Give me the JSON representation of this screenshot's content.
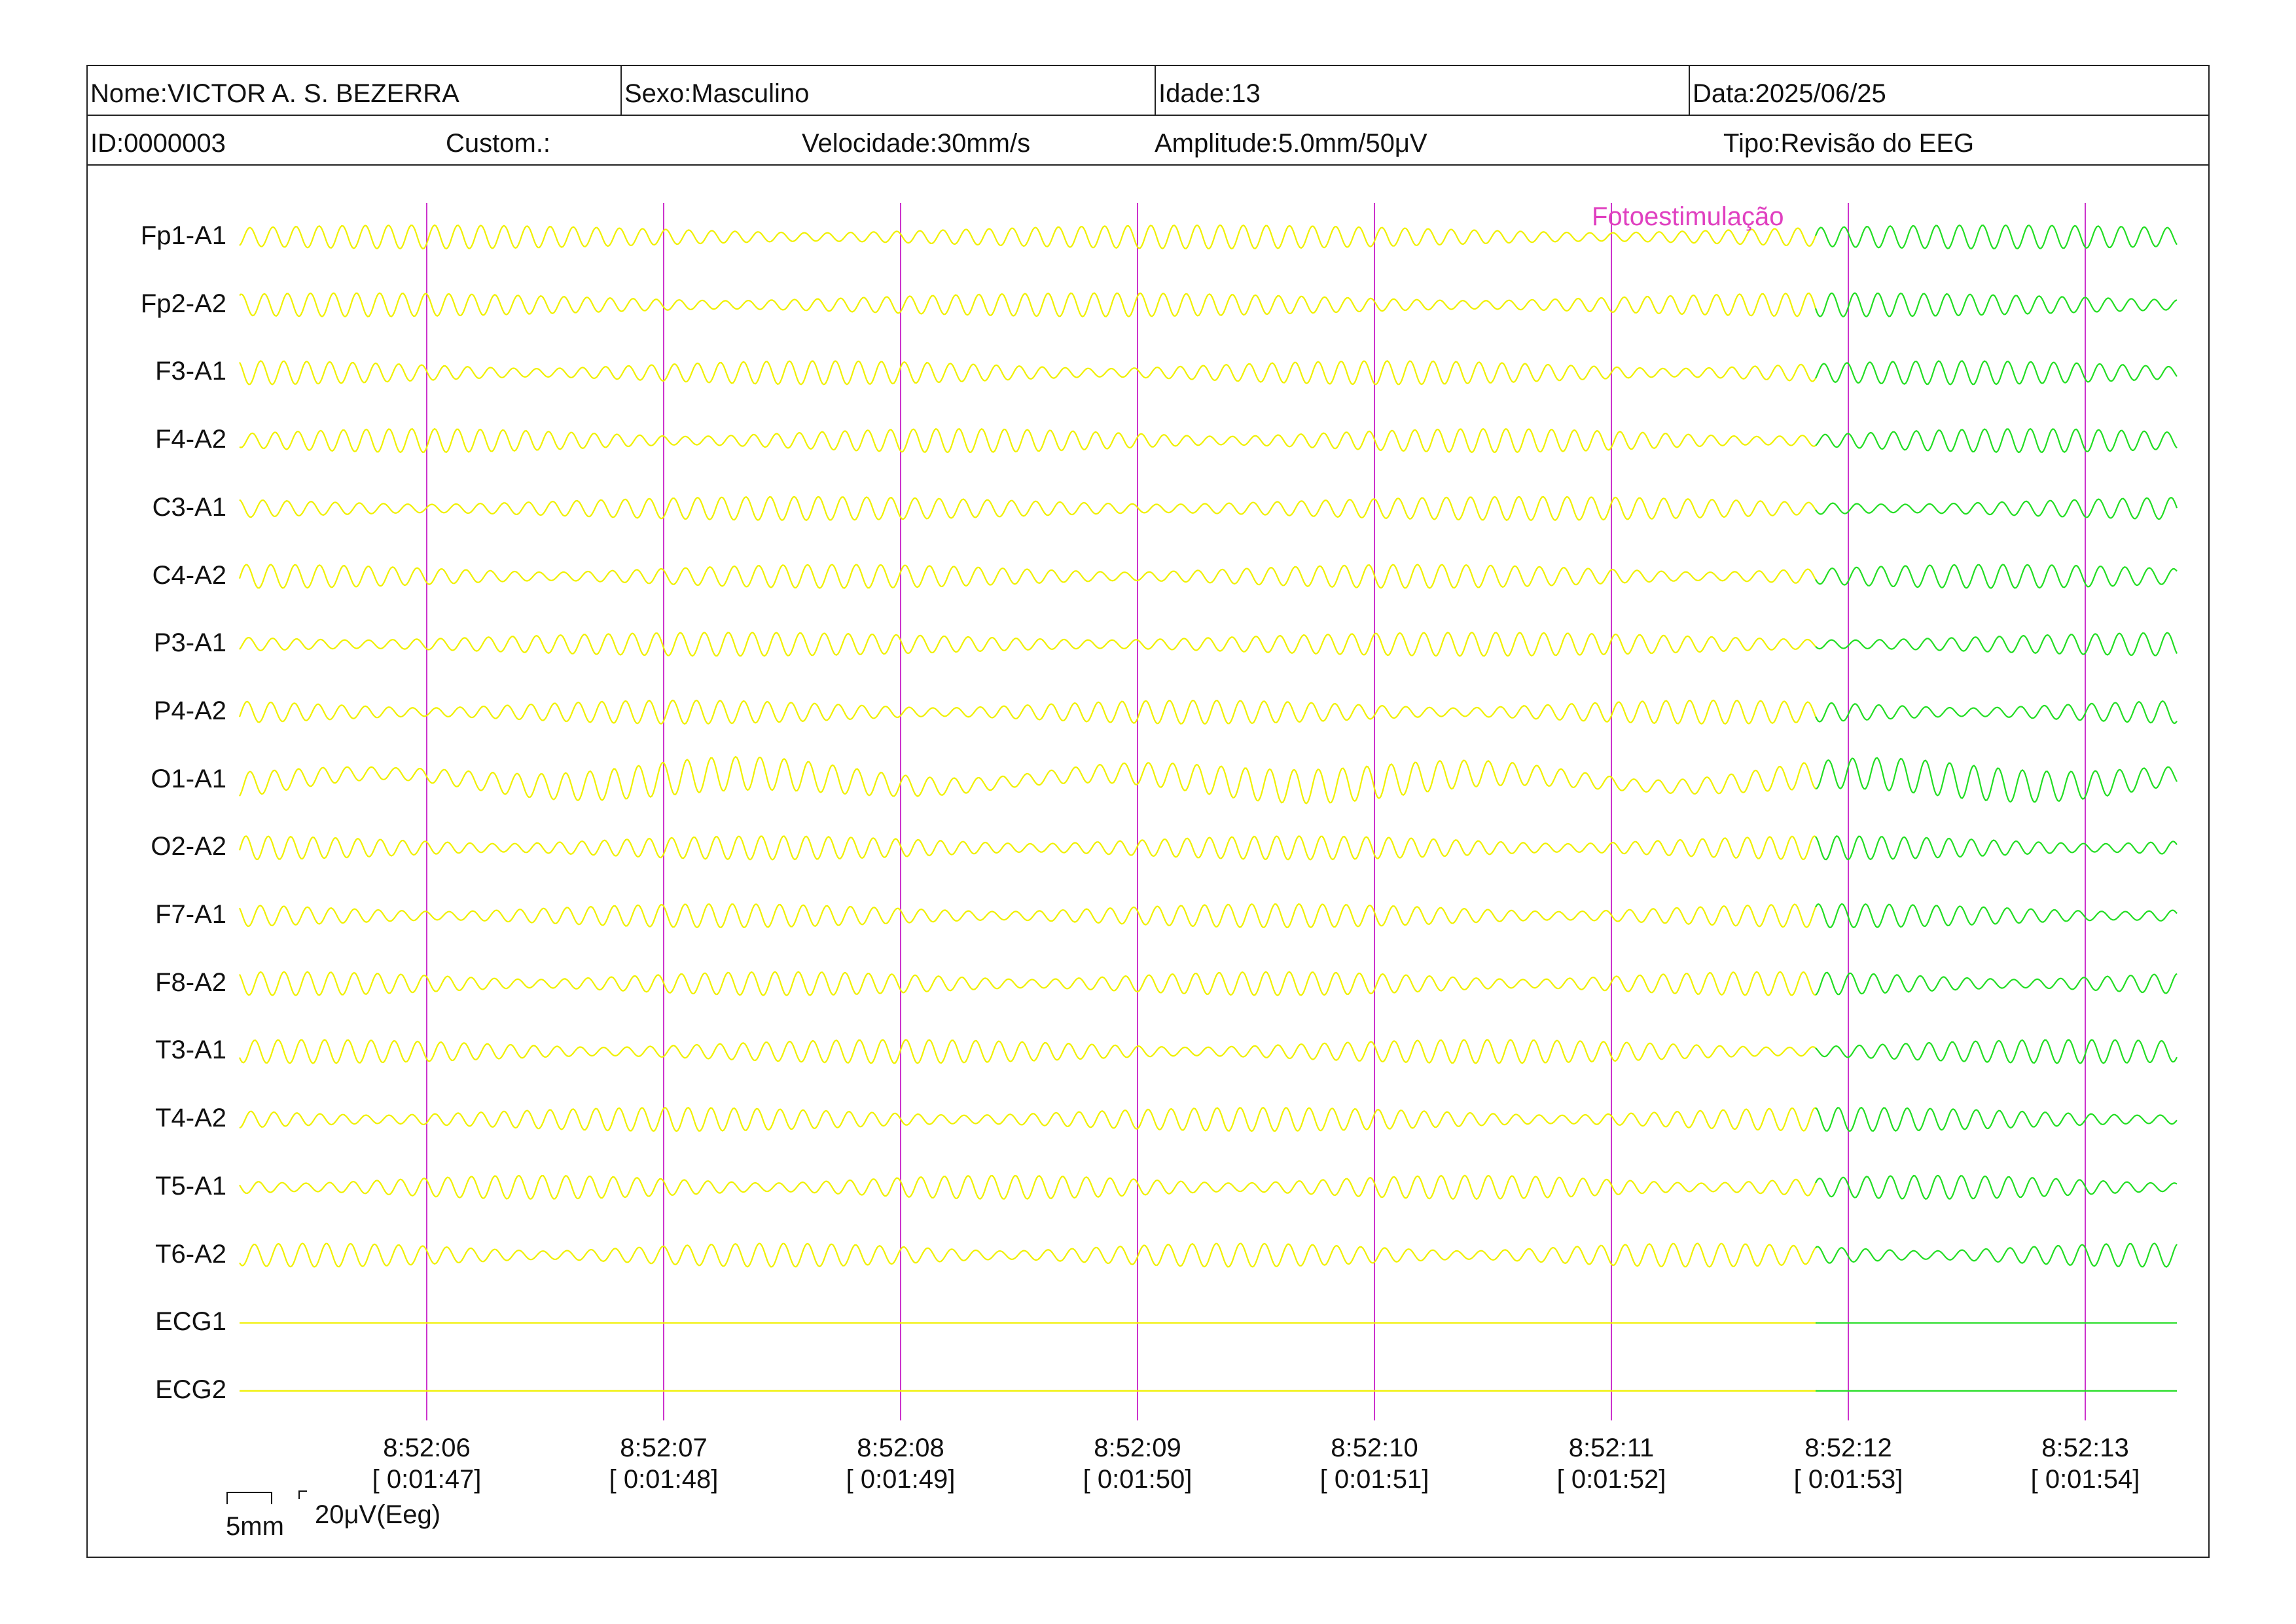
{
  "header": {
    "name": "Nome:VICTOR A. S. BEZERRA",
    "sex": "Sexo:Masculino",
    "age": "Idade:13",
    "date": "Data:2025/06/25",
    "id": "ID:0000003",
    "custom": "Custom.:",
    "speed": "Velocidade:30mm/s",
    "amplitude": "Amplitude:5.0mm/50μV",
    "type": "Tipo:Revisão do EEG"
  },
  "annotation": {
    "label": "Fotoestimulação",
    "color": "#e040c0"
  },
  "scale": {
    "mm": "5mm",
    "uv": "20μV(Eeg)"
  },
  "colors": {
    "trace": "#f0f000",
    "trace_photostim": "#22dd22",
    "marker": "#cc33cc"
  },
  "chart_data": {
    "type": "line",
    "title": "",
    "channels": [
      "Fp1-A1",
      "Fp2-A2",
      "F3-A1",
      "F4-A2",
      "C3-A1",
      "C4-A2",
      "P3-A1",
      "P4-A2",
      "O1-A1",
      "O2-A2",
      "F7-A1",
      "F8-A2",
      "T3-A1",
      "T4-A2",
      "T5-A1",
      "T6-A2",
      "ECG1",
      "ECG2"
    ],
    "time_ticks": [
      {
        "clock": "8:52:06",
        "elapsed": "[ 0:01:47]"
      },
      {
        "clock": "8:52:07",
        "elapsed": "[ 0:01:48]"
      },
      {
        "clock": "8:52:08",
        "elapsed": "[ 0:01:49]"
      },
      {
        "clock": "8:52:09",
        "elapsed": "[ 0:01:50]"
      },
      {
        "clock": "8:52:10",
        "elapsed": "[ 0:01:51]"
      },
      {
        "clock": "8:52:11",
        "elapsed": "[ 0:01:52]"
      },
      {
        "clock": "8:52:12",
        "elapsed": "[ 0:01:53]"
      },
      {
        "clock": "8:52:13",
        "elapsed": "[ 0:01:54]"
      }
    ],
    "grid": true,
    "photostimulation_marker": "8:52:11"
  }
}
